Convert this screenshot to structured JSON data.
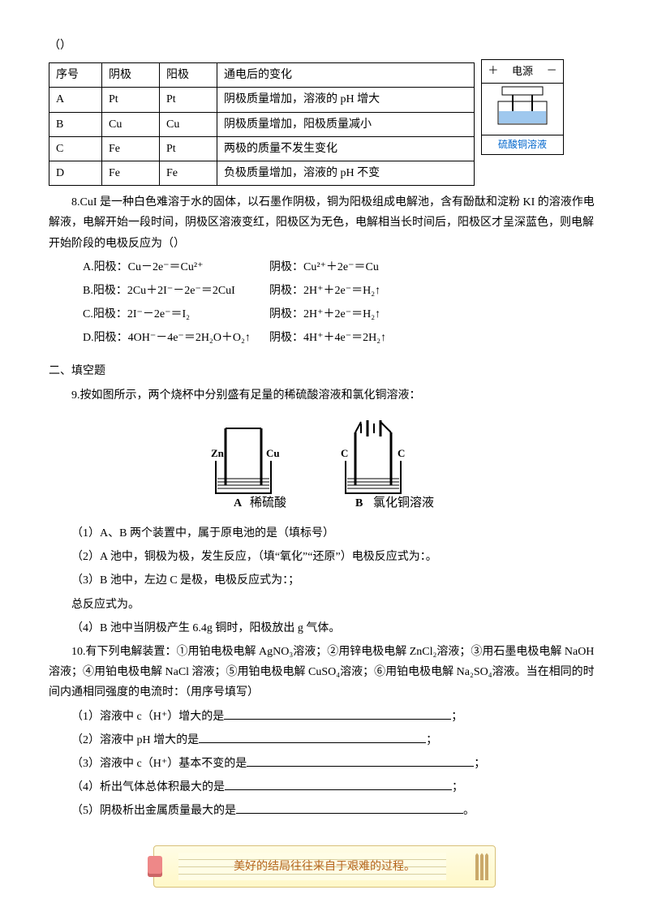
{
  "intro_paren": "（）",
  "table7": {
    "headers": [
      "序号",
      "阴极",
      "阳极",
      "通电后的变化"
    ],
    "rows": [
      [
        "A",
        "Pt",
        "Pt",
        "阴极质量增加，溶液的 pH 增大"
      ],
      [
        "B",
        "Cu",
        "Cu",
        "阴极质量增加，阳极质量减小"
      ],
      [
        "C",
        "Fe",
        "Pt",
        "两极的质量不发生变化"
      ],
      [
        "D",
        "Fe",
        "Fe",
        "负极质量增加，溶液的 pH 不变"
      ]
    ],
    "col_widths": [
      "48px",
      "54px",
      "54px",
      "300px"
    ]
  },
  "powerbox": {
    "top": "电源",
    "plus": "＋",
    "minus": "－",
    "solution": "硫酸铜溶液"
  },
  "q8": {
    "text": "8.CuI 是一种白色难溶于水的固体，以石墨作阴极，铜为阳极组成电解池，含有酚酞和淀粉 KI 的溶液作电解液，电解开始一段时间，阴极区溶液变红，阳极区为无色，电解相当长时间后，阳极区才呈深蓝色，则电解开始阶段的电极反应为（）",
    "opts": [
      {
        "lhs": "A.阳极：Cu－2e⁻＝Cu²⁺",
        "rhs": "阴极：Cu²⁺＋2e⁻＝Cu"
      },
      {
        "lhs": "B.阳极：2Cu＋2I⁻－2e⁻＝2CuI",
        "rhs": "阴极：2H⁺＋2e⁻＝H₂↑"
      },
      {
        "lhs": "C.阳极：2I⁻－2e⁻＝I₂",
        "rhs": "阴极：2H⁺＋2e⁻＝H₂↑"
      },
      {
        "lhs": "D.阳极：4OH⁻－4e⁻＝2H₂O＋O₂↑",
        "rhs": "阴极：4H⁺＋4e⁻＝2H₂↑"
      }
    ]
  },
  "section2": "二、填空题",
  "q9": {
    "stem": "9.按如图所示，两个烧杯中分别盛有足量的稀硫酸溶液和氯化铜溶液：",
    "fig": {
      "zn": "Zn",
      "cu": "Cu",
      "c": "C",
      "labelA": "A",
      "solA": "稀硫酸",
      "labelB": "B",
      "solB": "氯化铜溶液"
    },
    "subs": [
      "（1）A、B 两个装置中，属于原电池的是（填标号）",
      "（2）A 池中，铜极为极，发生反应，（填“氧化”“还原”）电极反应式为：。",
      "（3）B 池中，左边 C 是极，电极反应式为：；",
      "总反应式为。",
      "（4）B 池中当阴极产生 6.4g 铜时，阳极放出 g 气体。"
    ]
  },
  "q10": {
    "stem": "10.有下列电解装置：①用铂电极电解 AgNO₃溶液；②用锌电极电解 ZnCl₂溶液；③用石墨电极电解 NaOH 溶液；④用铂电极电解 NaCl 溶液；⑤用铂电极电解 CuSO₄溶液；⑥用铂电极电解 Na₂SO₄溶液。当在相同的时间内通相同强度的电流时：（用序号填写）",
    "subs": [
      {
        "label": "（1）溶液中 c（H⁺）增大的是",
        "tail": "；"
      },
      {
        "label": "（2）溶液中 pH 增大的是",
        "tail": "；"
      },
      {
        "label": "（3）溶液中 c（H⁺）基本不变的是",
        "tail": "；"
      },
      {
        "label": "（4）析出气体总体积最大的是",
        "tail": "；"
      },
      {
        "label": "（5）阴极析出金属质量最大的是",
        "tail": "。"
      }
    ]
  },
  "footer_quote": "美好的结局往往来自于艰难的过程。"
}
